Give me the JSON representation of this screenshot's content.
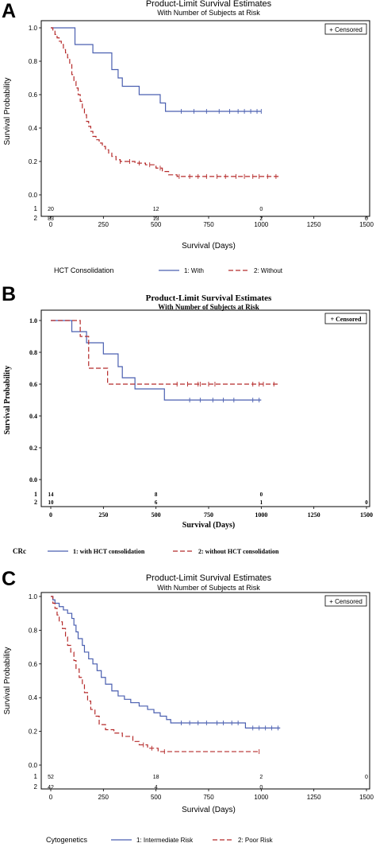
{
  "panels": [
    {
      "letter": "A",
      "style": "sans",
      "chart_data": {
        "type": "line",
        "title": "Product-Limit Survival Estimates",
        "subtitle": "With Number of Subjects at Risk",
        "xlabel": "Survival (Days)",
        "ylabel": "Survival Probability",
        "xlim": [
          0,
          1500
        ],
        "ylim": [
          0,
          1.0
        ],
        "xticks": [
          "0",
          "250",
          "500",
          "750",
          "1000",
          "1250",
          "1500"
        ],
        "yticks": [
          "0.0",
          "0.2",
          "0.4",
          "0.6",
          "0.8",
          "1.0"
        ],
        "censored_label": "+ Censored",
        "legend_title": "HCT Consolidation",
        "series": [
          {
            "name": "1: With",
            "color": "#4a5fb0",
            "dash": "none",
            "steps": [
              [
                0,
                1.0
              ],
              [
                115,
                0.9
              ],
              [
                200,
                0.85
              ],
              [
                290,
                0.75
              ],
              [
                320,
                0.7
              ],
              [
                340,
                0.65
              ],
              [
                420,
                0.6
              ],
              [
                520,
                0.55
              ],
              [
                545,
                0.5
              ],
              [
                1000,
                0.5
              ]
            ],
            "censored": [
              620,
              680,
              740,
              800,
              850,
              890,
              920,
              950,
              980,
              1000
            ],
            "at_risk_label": "1",
            "at_risk": [
              {
                "x": 0,
                "n": "20"
              },
              {
                "x": 500,
                "n": "12"
              },
              {
                "x": 1000,
                "n": "0"
              }
            ]
          },
          {
            "name": "2: Without",
            "color": "#b52a2a",
            "dash": "6,3",
            "steps": [
              [
                0,
                1.0
              ],
              [
                10,
                0.98
              ],
              [
                20,
                0.96
              ],
              [
                30,
                0.94
              ],
              [
                40,
                0.92
              ],
              [
                50,
                0.9
              ],
              [
                60,
                0.87
              ],
              [
                70,
                0.85
              ],
              [
                80,
                0.82
              ],
              [
                90,
                0.78
              ],
              [
                100,
                0.72
              ],
              [
                110,
                0.68
              ],
              [
                120,
                0.64
              ],
              [
                130,
                0.6
              ],
              [
                140,
                0.56
              ],
              [
                150,
                0.52
              ],
              [
                160,
                0.48
              ],
              [
                170,
                0.44
              ],
              [
                180,
                0.41
              ],
              [
                190,
                0.38
              ],
              [
                200,
                0.35
              ],
              [
                215,
                0.33
              ],
              [
                230,
                0.31
              ],
              [
                245,
                0.29
              ],
              [
                260,
                0.27
              ],
              [
                275,
                0.25
              ],
              [
                290,
                0.23
              ],
              [
                310,
                0.21
              ],
              [
                330,
                0.2
              ],
              [
                400,
                0.19
              ],
              [
                450,
                0.18
              ],
              [
                500,
                0.16
              ],
              [
                530,
                0.14
              ],
              [
                560,
                0.12
              ],
              [
                600,
                0.11
              ],
              [
                1090,
                0.11
              ]
            ],
            "censored": [
              330,
              375,
              420,
              470,
              520,
              610,
              660,
              700,
              740,
              790,
              830,
              880,
              920,
              960,
              990,
              1030,
              1070
            ],
            "at_risk_label": "2",
            "at_risk": [
              {
                "x": 0,
                "n": "83"
              },
              {
                "x": 500,
                "n": "13"
              },
              {
                "x": 1000,
                "n": "2"
              },
              {
                "x": 1500,
                "n": "0"
              }
            ]
          }
        ]
      }
    },
    {
      "letter": "B",
      "style": "serif",
      "chart_data": {
        "type": "line",
        "title": "Product-Limit Survival Estimates",
        "subtitle": "With Number of Subjects at Risk",
        "xlabel": "Survival (Days)",
        "ylabel": "Survival Probability",
        "xlim": [
          0,
          1500
        ],
        "ylim": [
          0,
          1.0
        ],
        "xticks": [
          "0",
          "250",
          "500",
          "750",
          "1000",
          "1250",
          "1500"
        ],
        "yticks": [
          "0.0",
          "0.2",
          "0.4",
          "0.6",
          "0.8",
          "1.0"
        ],
        "censored_label": "+ Censored",
        "legend_title": "CRc",
        "series": [
          {
            "name": "1: with HCT consolidation",
            "color": "#4a5fb0",
            "dash": "none",
            "steps": [
              [
                0,
                1.0
              ],
              [
                100,
                0.93
              ],
              [
                170,
                0.86
              ],
              [
                250,
                0.79
              ],
              [
                320,
                0.71
              ],
              [
                340,
                0.64
              ],
              [
                400,
                0.57
              ],
              [
                540,
                0.5
              ],
              [
                1000,
                0.5
              ]
            ],
            "censored": [
              660,
              710,
              770,
              820,
              870,
              960,
              990
            ],
            "at_risk_label": "1",
            "at_risk": [
              {
                "x": 0,
                "n": "14"
              },
              {
                "x": 500,
                "n": "8"
              },
              {
                "x": 1000,
                "n": "0"
              }
            ]
          },
          {
            "name": "2: without HCT consolidation",
            "color": "#b52a2a",
            "dash": "6,3",
            "steps": [
              [
                0,
                1.0
              ],
              [
                140,
                0.9
              ],
              [
                180,
                0.7
              ],
              [
                270,
                0.6
              ],
              [
                1080,
                0.6
              ]
            ],
            "censored": [
              600,
              650,
              700,
              710,
              750,
              780,
              960,
              990,
              1010,
              1060
            ],
            "at_risk_label": "2",
            "at_risk": [
              {
                "x": 0,
                "n": "10"
              },
              {
                "x": 500,
                "n": "6"
              },
              {
                "x": 1000,
                "n": "1"
              },
              {
                "x": 1500,
                "n": "0"
              }
            ]
          }
        ]
      }
    },
    {
      "letter": "C",
      "style": "sans",
      "chart_data": {
        "type": "line",
        "title": "Product-Limit Survival Estimates",
        "subtitle": "With Number of Subjects at Risk",
        "xlabel": "Survival (Days)",
        "ylabel": "Survival Probability",
        "xlim": [
          0,
          1500
        ],
        "ylim": [
          0,
          1.0
        ],
        "xticks": [
          "0",
          "250",
          "500",
          "750",
          "1000",
          "1250",
          "1500"
        ],
        "yticks": [
          "0.0",
          "0.2",
          "0.4",
          "0.6",
          "0.8",
          "1.0"
        ],
        "censored_label": "+ Censored",
        "legend_title": "Cytogenetics",
        "series": [
          {
            "name": "1: Intermediate Risk",
            "color": "#4a5fb0",
            "dash": "none",
            "steps": [
              [
                0,
                1.0
              ],
              [
                10,
                0.98
              ],
              [
                20,
                0.96
              ],
              [
                40,
                0.94
              ],
              [
                60,
                0.92
              ],
              [
                80,
                0.9
              ],
              [
                100,
                0.87
              ],
              [
                110,
                0.83
              ],
              [
                120,
                0.79
              ],
              [
                130,
                0.75
              ],
              [
                150,
                0.71
              ],
              [
                160,
                0.67
              ],
              [
                180,
                0.63
              ],
              [
                200,
                0.6
              ],
              [
                220,
                0.56
              ],
              [
                240,
                0.52
              ],
              [
                260,
                0.48
              ],
              [
                290,
                0.44
              ],
              [
                320,
                0.41
              ],
              [
                350,
                0.39
              ],
              [
                380,
                0.37
              ],
              [
                420,
                0.35
              ],
              [
                460,
                0.33
              ],
              [
                490,
                0.31
              ],
              [
                520,
                0.29
              ],
              [
                550,
                0.27
              ],
              [
                570,
                0.25
              ],
              [
                920,
                0.25
              ],
              [
                925,
                0.22
              ],
              [
                1090,
                0.22
              ]
            ],
            "censored": [
              620,
              660,
              700,
              740,
              790,
              820,
              860,
              890,
              960,
              990,
              1020,
              1050,
              1080
            ],
            "at_risk_label": "1",
            "at_risk": [
              {
                "x": 0,
                "n": "52"
              },
              {
                "x": 500,
                "n": "18"
              },
              {
                "x": 1000,
                "n": "2"
              },
              {
                "x": 1500,
                "n": "0"
              }
            ]
          },
          {
            "name": "2: Poor Risk",
            "color": "#b52a2a",
            "dash": "6,3",
            "steps": [
              [
                0,
                1.0
              ],
              [
                10,
                0.96
              ],
              [
                20,
                0.93
              ],
              [
                30,
                0.89
              ],
              [
                40,
                0.85
              ],
              [
                55,
                0.81
              ],
              [
                70,
                0.76
              ],
              [
                80,
                0.71
              ],
              [
                95,
                0.67
              ],
              [
                110,
                0.62
              ],
              [
                120,
                0.57
              ],
              [
                135,
                0.52
              ],
              [
                150,
                0.48
              ],
              [
                160,
                0.43
              ],
              [
                175,
                0.38
              ],
              [
                190,
                0.33
              ],
              [
                210,
                0.29
              ],
              [
                230,
                0.24
              ],
              [
                260,
                0.21
              ],
              [
                300,
                0.19
              ],
              [
                340,
                0.17
              ],
              [
                390,
                0.14
              ],
              [
                420,
                0.12
              ],
              [
                460,
                0.1
              ],
              [
                510,
                0.08
              ],
              [
                990,
                0.08
              ]
            ],
            "censored": [
              440,
              480,
              540,
              990
            ],
            "at_risk_label": "2",
            "at_risk": [
              {
                "x": 0,
                "n": "42"
              },
              {
                "x": 500,
                "n": "4"
              },
              {
                "x": 1000,
                "n": "0"
              }
            ]
          }
        ]
      }
    }
  ]
}
